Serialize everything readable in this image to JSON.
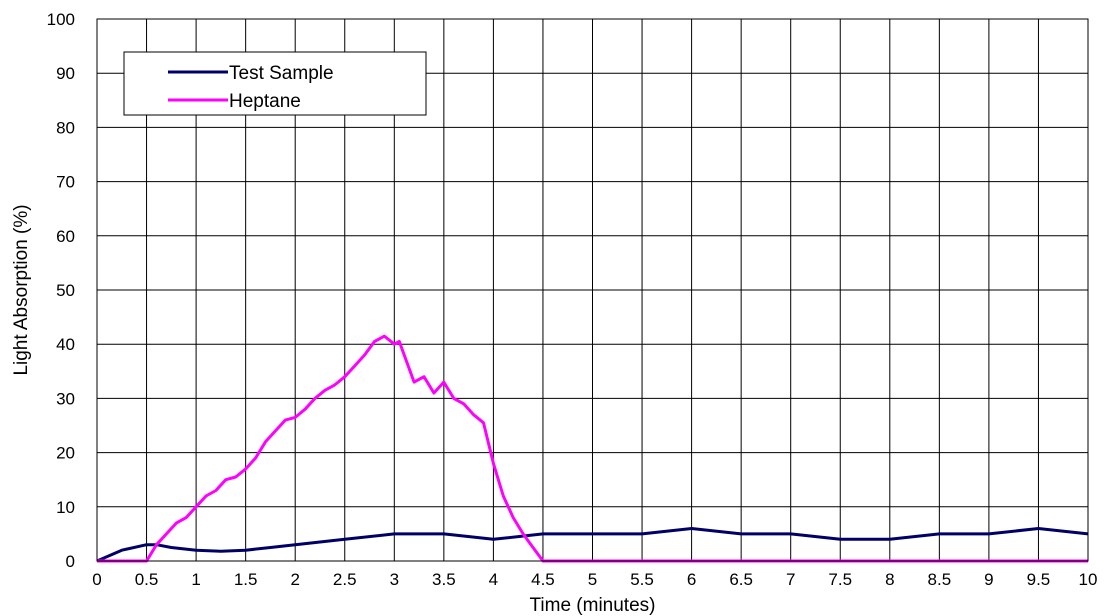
{
  "chart_data": {
    "type": "line",
    "xlabel": "Time (minutes)",
    "ylabel": "Light Absorption (%)",
    "xlim": [
      0,
      10
    ],
    "ylim": [
      0,
      100
    ],
    "x_ticks": [
      "0",
      "0.5",
      "1",
      "1.5",
      "2",
      "2.5",
      "3",
      "3.5",
      "4",
      "4.5",
      "5",
      "5.5",
      "6",
      "6.5",
      "7",
      "7.5",
      "8",
      "8.5",
      "9",
      "9.5",
      "10"
    ],
    "y_ticks": [
      "0",
      "10",
      "20",
      "30",
      "40",
      "50",
      "60",
      "70",
      "80",
      "90",
      "100"
    ],
    "grid": true,
    "legend_position": "top-left",
    "series": [
      {
        "name": "Test Sample",
        "color": "#000066",
        "points": [
          [
            0,
            0
          ],
          [
            0.25,
            2
          ],
          [
            0.5,
            3
          ],
          [
            0.6,
            3
          ],
          [
            0.75,
            2.5
          ],
          [
            1,
            2
          ],
          [
            1.25,
            1.8
          ],
          [
            1.5,
            2
          ],
          [
            1.75,
            2.5
          ],
          [
            2,
            3
          ],
          [
            2.5,
            4
          ],
          [
            3,
            5
          ],
          [
            3.5,
            5
          ],
          [
            4,
            4
          ],
          [
            4.5,
            5
          ],
          [
            5,
            5
          ],
          [
            5.5,
            5
          ],
          [
            6,
            6
          ],
          [
            6.5,
            5
          ],
          [
            7,
            5
          ],
          [
            7.5,
            4
          ],
          [
            8,
            4
          ],
          [
            8.5,
            5
          ],
          [
            9,
            5
          ],
          [
            9.5,
            6
          ],
          [
            10,
            5
          ]
        ]
      },
      {
        "name": "Heptane",
        "color": "#ff00ff",
        "points": [
          [
            0,
            0
          ],
          [
            0.5,
            0
          ],
          [
            0.6,
            3
          ],
          [
            0.7,
            5
          ],
          [
            0.8,
            7
          ],
          [
            0.9,
            8
          ],
          [
            1,
            10
          ],
          [
            1.1,
            12
          ],
          [
            1.2,
            13
          ],
          [
            1.3,
            15
          ],
          [
            1.4,
            15.5
          ],
          [
            1.5,
            17
          ],
          [
            1.6,
            19
          ],
          [
            1.7,
            22
          ],
          [
            1.8,
            24
          ],
          [
            1.9,
            26
          ],
          [
            2,
            26.5
          ],
          [
            2.1,
            28
          ],
          [
            2.2,
            30
          ],
          [
            2.3,
            31.5
          ],
          [
            2.4,
            32.5
          ],
          [
            2.5,
            34
          ],
          [
            2.6,
            36
          ],
          [
            2.7,
            38
          ],
          [
            2.8,
            40.5
          ],
          [
            2.9,
            41.5
          ],
          [
            3.0,
            40
          ],
          [
            3.05,
            40.5
          ],
          [
            3.1,
            38
          ],
          [
            3.2,
            33
          ],
          [
            3.3,
            34
          ],
          [
            3.4,
            31
          ],
          [
            3.5,
            33
          ],
          [
            3.6,
            30
          ],
          [
            3.7,
            29
          ],
          [
            3.8,
            27
          ],
          [
            3.9,
            25.5
          ],
          [
            4.0,
            18
          ],
          [
            4.1,
            12
          ],
          [
            4.2,
            8
          ],
          [
            4.3,
            5
          ],
          [
            4.4,
            2.5
          ],
          [
            4.5,
            0
          ],
          [
            10,
            0
          ]
        ]
      }
    ]
  }
}
